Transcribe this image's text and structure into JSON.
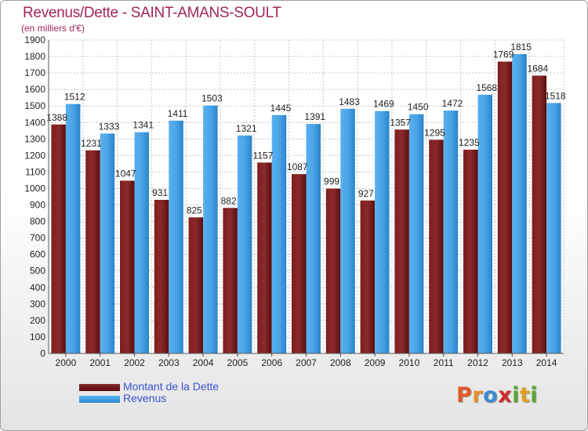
{
  "chart_data": {
    "type": "bar",
    "title": "Revenus/Dette - SAINT-AMANS-SOULT",
    "subtitle": "(en milliers d'€)",
    "categories": [
      "2000",
      "2001",
      "2002",
      "2003",
      "2004",
      "2005",
      "2006",
      "2007",
      "2008",
      "2009",
      "2010",
      "2011",
      "2012",
      "2013",
      "2014"
    ],
    "series": [
      {
        "name": "Montant de la Dette",
        "color": "#6e1216",
        "values": [
          1388,
          1231,
          1047,
          931,
          825,
          882,
          1157,
          1087,
          999,
          927,
          1357,
          1295,
          1235,
          1769,
          1684
        ],
        "labels": [
          "1388",
          "1231",
          "1047",
          "931",
          "825",
          "882",
          "1157",
          "1087",
          "999",
          "927",
          "1357",
          "1295",
          "1235",
          "1769",
          "1684"
        ]
      },
      {
        "name": "Revenus",
        "color": "#2f8ed8",
        "values": [
          1512,
          1333,
          1341,
          1411,
          1503,
          1321,
          1445,
          1391,
          1483,
          1469,
          1450,
          1472,
          1568,
          1815,
          1518
        ],
        "labels": [
          "1512",
          "1333",
          "1341",
          "1411",
          "1503",
          "1321",
          "1445",
          "1391",
          "1483",
          "1469",
          "1450",
          "1472",
          "1568",
          "1815",
          "1518"
        ]
      }
    ],
    "ylim": [
      0,
      1900
    ],
    "ytick_step": 100,
    "grid": true,
    "legend_placement": "bottom-left"
  },
  "brand": {
    "letters": [
      "P",
      "r",
      "o",
      "x",
      "i",
      "t",
      "i"
    ],
    "colors": [
      "#e0592a",
      "#e8902a",
      "#3a8ad0",
      "#d02a2a",
      "#5aa832",
      "#e0a020",
      "#5aa832"
    ]
  }
}
